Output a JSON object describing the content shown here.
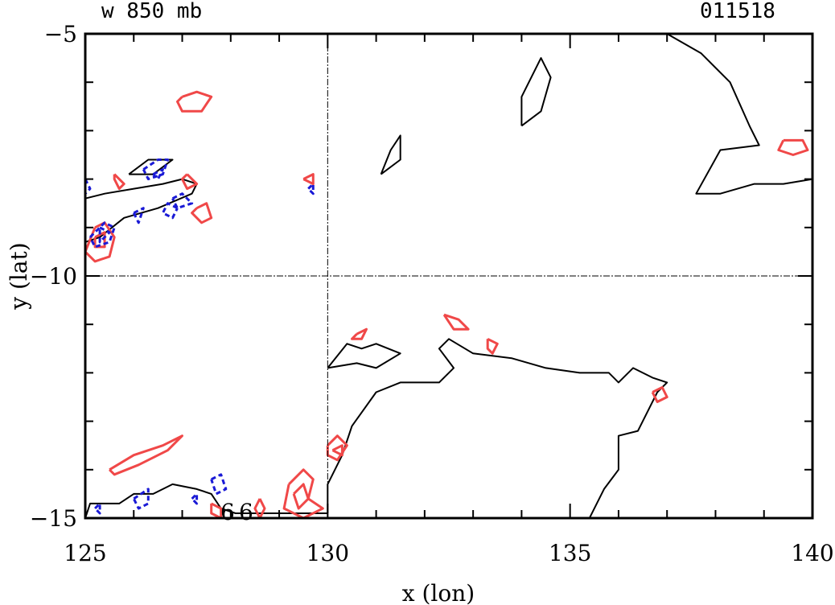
{
  "chart_data": {
    "type": "contour",
    "title": "w 850 mb",
    "date_label": "011518",
    "xlabel": "x (lon)",
    "ylabel": "y (lat)",
    "xlim": [
      125,
      140
    ],
    "ylim": [
      -15,
      -5
    ],
    "xticks": [
      125,
      130,
      135,
      140
    ],
    "yticks": [
      -5,
      -10,
      -15
    ],
    "reference_lines": {
      "x": 130,
      "y": -10
    },
    "marker_labels": [
      "6",
      "6"
    ],
    "colors": {
      "black_contour": "#000000",
      "red_contour": "#f04848",
      "blue_contour": "#1a1ad6",
      "green_label": "#22dd22"
    },
    "contours": [
      {
        "color": "black",
        "points": [
          [
            136.2,
            -5
          ],
          [
            137,
            -5
          ],
          [
            137.7,
            -5.4
          ],
          [
            138.3,
            -6.0
          ],
          [
            138.7,
            -6.9
          ],
          [
            138.9,
            -7.3
          ],
          [
            138.1,
            -7.4
          ],
          [
            137.6,
            -8.3
          ],
          [
            138.1,
            -8.3
          ],
          [
            138.8,
            -8.1
          ],
          [
            139.4,
            -8.1
          ],
          [
            140,
            -8.0
          ]
        ]
      },
      {
        "color": "black",
        "points": [
          [
            134.0,
            -6.9
          ],
          [
            134.4,
            -6.6
          ],
          [
            134.6,
            -5.9
          ],
          [
            134.4,
            -5.5
          ],
          [
            134.0,
            -6.3
          ],
          [
            134.0,
            -6.9
          ]
        ]
      },
      {
        "color": "black",
        "points": [
          [
            131.1,
            -7.9
          ],
          [
            131.5,
            -7.6
          ],
          [
            131.5,
            -7.1
          ],
          [
            131.3,
            -7.4
          ],
          [
            131.1,
            -7.9
          ]
        ]
      },
      {
        "color": "black",
        "points": [
          [
            125.0,
            -8.4
          ],
          [
            125.4,
            -8.3
          ],
          [
            126.0,
            -8.2
          ],
          [
            126.6,
            -8.1
          ],
          [
            127.0,
            -8.0
          ],
          [
            127.3,
            -8.1
          ],
          [
            127.2,
            -8.3
          ],
          [
            126.5,
            -8.6
          ],
          [
            125.8,
            -8.8
          ],
          [
            125.3,
            -9.2
          ],
          [
            125.0,
            -9.3
          ]
        ]
      },
      {
        "color": "black",
        "points": [
          [
            125.9,
            -7.9
          ],
          [
            126.3,
            -7.6
          ],
          [
            126.8,
            -7.6
          ],
          [
            126.4,
            -7.9
          ],
          [
            125.9,
            -7.9
          ]
        ]
      },
      {
        "color": "black",
        "points": [
          [
            130.0,
            -11.9
          ],
          [
            130.4,
            -11.4
          ],
          [
            130.7,
            -11.5
          ],
          [
            131.0,
            -11.4
          ],
          [
            131.5,
            -11.6
          ],
          [
            131.0,
            -11.9
          ],
          [
            130.6,
            -11.8
          ],
          [
            130.0,
            -11.9
          ]
        ]
      },
      {
        "color": "black",
        "points": [
          [
            130.0,
            -14.9
          ],
          [
            130.0,
            -14.3
          ],
          [
            130.3,
            -13.7
          ],
          [
            130.5,
            -13.1
          ],
          [
            131.0,
            -12.4
          ],
          [
            131.5,
            -12.2
          ],
          [
            132.3,
            -12.2
          ],
          [
            132.6,
            -11.9
          ],
          [
            132.3,
            -11.5
          ],
          [
            132.5,
            -11.3
          ],
          [
            133.0,
            -11.6
          ],
          [
            133.8,
            -11.7
          ],
          [
            134.5,
            -11.9
          ],
          [
            135.2,
            -12.0
          ],
          [
            135.8,
            -12.0
          ],
          [
            136.0,
            -12.2
          ],
          [
            136.3,
            -11.9
          ],
          [
            136.7,
            -12.1
          ],
          [
            137.0,
            -12.2
          ],
          [
            136.8,
            -12.4
          ],
          [
            136.4,
            -13.2
          ],
          [
            136.0,
            -13.3
          ],
          [
            136.0,
            -14.0
          ],
          [
            135.7,
            -14.4
          ],
          [
            135.4,
            -15.0
          ]
        ]
      },
      {
        "color": "black",
        "points": [
          [
            125.0,
            -15.0
          ],
          [
            125.1,
            -14.7
          ],
          [
            125.7,
            -14.7
          ],
          [
            126.0,
            -14.5
          ],
          [
            126.4,
            -14.5
          ],
          [
            126.8,
            -14.3
          ],
          [
            127.3,
            -14.4
          ],
          [
            127.6,
            -14.5
          ],
          [
            127.8,
            -14.8
          ],
          [
            128.1,
            -14.9
          ],
          [
            128.5,
            -14.9
          ],
          [
            129.0,
            -14.9
          ],
          [
            129.5,
            -14.9
          ],
          [
            130.0,
            -14.9
          ]
        ]
      },
      {
        "color": "red",
        "points": [
          [
            127.0,
            -6.3
          ],
          [
            127.3,
            -6.2
          ],
          [
            127.6,
            -6.3
          ],
          [
            127.4,
            -6.6
          ],
          [
            127.0,
            -6.6
          ],
          [
            126.9,
            -6.4
          ],
          [
            127.0,
            -6.3
          ]
        ]
      },
      {
        "color": "red",
        "points": [
          [
            139.4,
            -7.2
          ],
          [
            139.8,
            -7.2
          ],
          [
            139.9,
            -7.4
          ],
          [
            139.6,
            -7.5
          ],
          [
            139.3,
            -7.4
          ],
          [
            139.4,
            -7.2
          ]
        ]
      },
      {
        "color": "red",
        "points": [
          [
            129.5,
            -8.0
          ],
          [
            129.7,
            -7.9
          ],
          [
            129.7,
            -8.1
          ],
          [
            129.5,
            -8.0
          ]
        ]
      },
      {
        "color": "red",
        "points": [
          [
            125.6,
            -7.9
          ],
          [
            125.8,
            -8.1
          ],
          [
            125.7,
            -8.2
          ],
          [
            125.6,
            -8.0
          ],
          [
            125.6,
            -7.9
          ]
        ]
      },
      {
        "color": "red",
        "points": [
          [
            127.1,
            -7.9
          ],
          [
            127.3,
            -8.1
          ],
          [
            127.1,
            -8.2
          ],
          [
            127.0,
            -8.0
          ],
          [
            127.1,
            -7.9
          ]
        ]
      },
      {
        "color": "red",
        "points": [
          [
            127.3,
            -8.6
          ],
          [
            127.5,
            -8.5
          ],
          [
            127.6,
            -8.8
          ],
          [
            127.4,
            -8.9
          ],
          [
            127.2,
            -8.7
          ],
          [
            127.3,
            -8.6
          ]
        ]
      },
      {
        "color": "red",
        "points": [
          [
            125.2,
            -9.0
          ],
          [
            125.4,
            -8.9
          ],
          [
            125.6,
            -9.2
          ],
          [
            125.5,
            -9.6
          ],
          [
            125.2,
            -9.7
          ],
          [
            125.0,
            -9.5
          ],
          [
            125.2,
            -9.0
          ]
        ]
      },
      {
        "color": "red",
        "points": [
          [
            125.2,
            -9.2
          ],
          [
            125.4,
            -9.1
          ],
          [
            125.4,
            -9.4
          ],
          [
            125.2,
            -9.4
          ],
          [
            125.2,
            -9.2
          ]
        ]
      },
      {
        "color": "red",
        "points": [
          [
            130.6,
            -11.2
          ],
          [
            130.8,
            -11.1
          ],
          [
            130.7,
            -11.3
          ],
          [
            130.5,
            -11.3
          ],
          [
            130.6,
            -11.2
          ]
        ]
      },
      {
        "color": "red",
        "points": [
          [
            132.4,
            -10.8
          ],
          [
            132.7,
            -10.9
          ],
          [
            132.9,
            -11.1
          ],
          [
            132.6,
            -11.1
          ],
          [
            132.4,
            -10.8
          ]
        ]
      },
      {
        "color": "red",
        "points": [
          [
            133.3,
            -11.3
          ],
          [
            133.5,
            -11.4
          ],
          [
            133.4,
            -11.6
          ],
          [
            133.3,
            -11.5
          ],
          [
            133.3,
            -11.3
          ]
        ]
      },
      {
        "color": "red",
        "points": [
          [
            130.0,
            -13.5
          ],
          [
            130.2,
            -13.3
          ],
          [
            130.4,
            -13.5
          ],
          [
            130.2,
            -13.8
          ],
          [
            130.0,
            -13.7
          ],
          [
            130.0,
            -13.5
          ]
        ]
      },
      {
        "color": "red",
        "points": [
          [
            130.1,
            -13.6
          ],
          [
            130.3,
            -13.5
          ],
          [
            130.3,
            -13.7
          ],
          [
            130.1,
            -13.6
          ]
        ]
      },
      {
        "color": "red",
        "points": [
          [
            136.7,
            -12.4
          ],
          [
            136.9,
            -12.3
          ],
          [
            137.0,
            -12.5
          ],
          [
            136.8,
            -12.6
          ],
          [
            136.7,
            -12.4
          ]
        ]
      },
      {
        "color": "red",
        "points": [
          [
            125.5,
            -14.0
          ],
          [
            126.0,
            -13.7
          ],
          [
            126.6,
            -13.5
          ],
          [
            127.0,
            -13.3
          ],
          [
            126.7,
            -13.6
          ],
          [
            126.1,
            -13.9
          ],
          [
            125.6,
            -14.1
          ],
          [
            125.5,
            -14.0
          ]
        ]
      },
      {
        "color": "red",
        "points": [
          [
            129.2,
            -14.3
          ],
          [
            129.5,
            -14.0
          ],
          [
            129.7,
            -14.2
          ],
          [
            129.6,
            -14.6
          ],
          [
            129.9,
            -14.8
          ],
          [
            129.5,
            -15.0
          ],
          [
            129.1,
            -14.8
          ],
          [
            129.2,
            -14.3
          ]
        ]
      },
      {
        "color": "red",
        "points": [
          [
            129.3,
            -14.5
          ],
          [
            129.5,
            -14.3
          ],
          [
            129.6,
            -14.6
          ],
          [
            129.4,
            -14.8
          ],
          [
            129.3,
            -14.5
          ]
        ]
      },
      {
        "color": "red",
        "points": [
          [
            127.6,
            -14.7
          ],
          [
            127.8,
            -14.8
          ],
          [
            127.8,
            -15.0
          ],
          [
            127.6,
            -14.9
          ],
          [
            127.6,
            -14.7
          ]
        ]
      },
      {
        "color": "red",
        "points": [
          [
            128.6,
            -14.6
          ],
          [
            128.7,
            -14.8
          ],
          [
            128.6,
            -15.0
          ],
          [
            128.5,
            -14.8
          ],
          [
            128.6,
            -14.6
          ]
        ]
      },
      {
        "color": "blue",
        "points": [
          [
            126.2,
            -7.8
          ],
          [
            126.5,
            -7.6
          ],
          [
            126.7,
            -7.6
          ],
          [
            126.6,
            -7.9
          ],
          [
            126.3,
            -8.0
          ],
          [
            126.2,
            -7.8
          ]
        ]
      },
      {
        "color": "blue",
        "points": [
          [
            126.4,
            -7.9
          ],
          [
            126.6,
            -7.8
          ],
          [
            126.5,
            -8.0
          ],
          [
            126.4,
            -7.9
          ]
        ]
      },
      {
        "color": "blue",
        "points": [
          [
            126.8,
            -8.4
          ],
          [
            127.0,
            -8.3
          ],
          [
            127.2,
            -8.5
          ],
          [
            126.9,
            -8.6
          ],
          [
            126.8,
            -8.4
          ]
        ]
      },
      {
        "color": "blue",
        "points": [
          [
            126.9,
            -8.6
          ],
          [
            126.7,
            -8.5
          ],
          [
            126.6,
            -8.7
          ],
          [
            126.8,
            -8.8
          ],
          [
            126.9,
            -8.6
          ]
        ]
      },
      {
        "color": "blue",
        "points": [
          [
            126.0,
            -8.7
          ],
          [
            126.2,
            -8.6
          ],
          [
            126.1,
            -8.9
          ],
          [
            126.0,
            -8.7
          ]
        ]
      },
      {
        "color": "blue",
        "points": [
          [
            125.1,
            -9.2
          ],
          [
            125.4,
            -8.9
          ],
          [
            125.6,
            -9.0
          ],
          [
            125.5,
            -9.3
          ],
          [
            125.2,
            -9.4
          ],
          [
            125.1,
            -9.2
          ]
        ]
      },
      {
        "color": "blue",
        "points": [
          [
            125.3,
            -9.0
          ],
          [
            125.5,
            -9.1
          ],
          [
            125.3,
            -9.3
          ],
          [
            125.3,
            -9.0
          ]
        ]
      },
      {
        "color": "blue",
        "points": [
          [
            125.0,
            -8.0
          ],
          [
            125.1,
            -8.2
          ],
          [
            125.0,
            -8.3
          ]
        ]
      },
      {
        "color": "blue",
        "points": [
          [
            129.6,
            -8.2
          ],
          [
            129.7,
            -8.1
          ],
          [
            129.7,
            -8.3
          ],
          [
            129.6,
            -8.2
          ]
        ]
      },
      {
        "color": "blue",
        "points": [
          [
            126.0,
            -14.6
          ],
          [
            126.3,
            -14.4
          ],
          [
            126.3,
            -14.7
          ],
          [
            126.1,
            -14.8
          ],
          [
            126.0,
            -14.6
          ]
        ]
      },
      {
        "color": "blue",
        "points": [
          [
            127.6,
            -14.2
          ],
          [
            127.8,
            -14.1
          ],
          [
            127.9,
            -14.4
          ],
          [
            127.7,
            -14.5
          ],
          [
            127.6,
            -14.2
          ]
        ]
      },
      {
        "color": "blue",
        "points": [
          [
            127.2,
            -14.6
          ],
          [
            127.3,
            -14.5
          ],
          [
            127.3,
            -14.7
          ],
          [
            127.2,
            -14.6
          ]
        ]
      },
      {
        "color": "blue",
        "points": [
          [
            125.2,
            -14.8
          ],
          [
            125.3,
            -14.7
          ],
          [
            125.3,
            -14.9
          ],
          [
            125.2,
            -14.8
          ]
        ]
      }
    ]
  }
}
